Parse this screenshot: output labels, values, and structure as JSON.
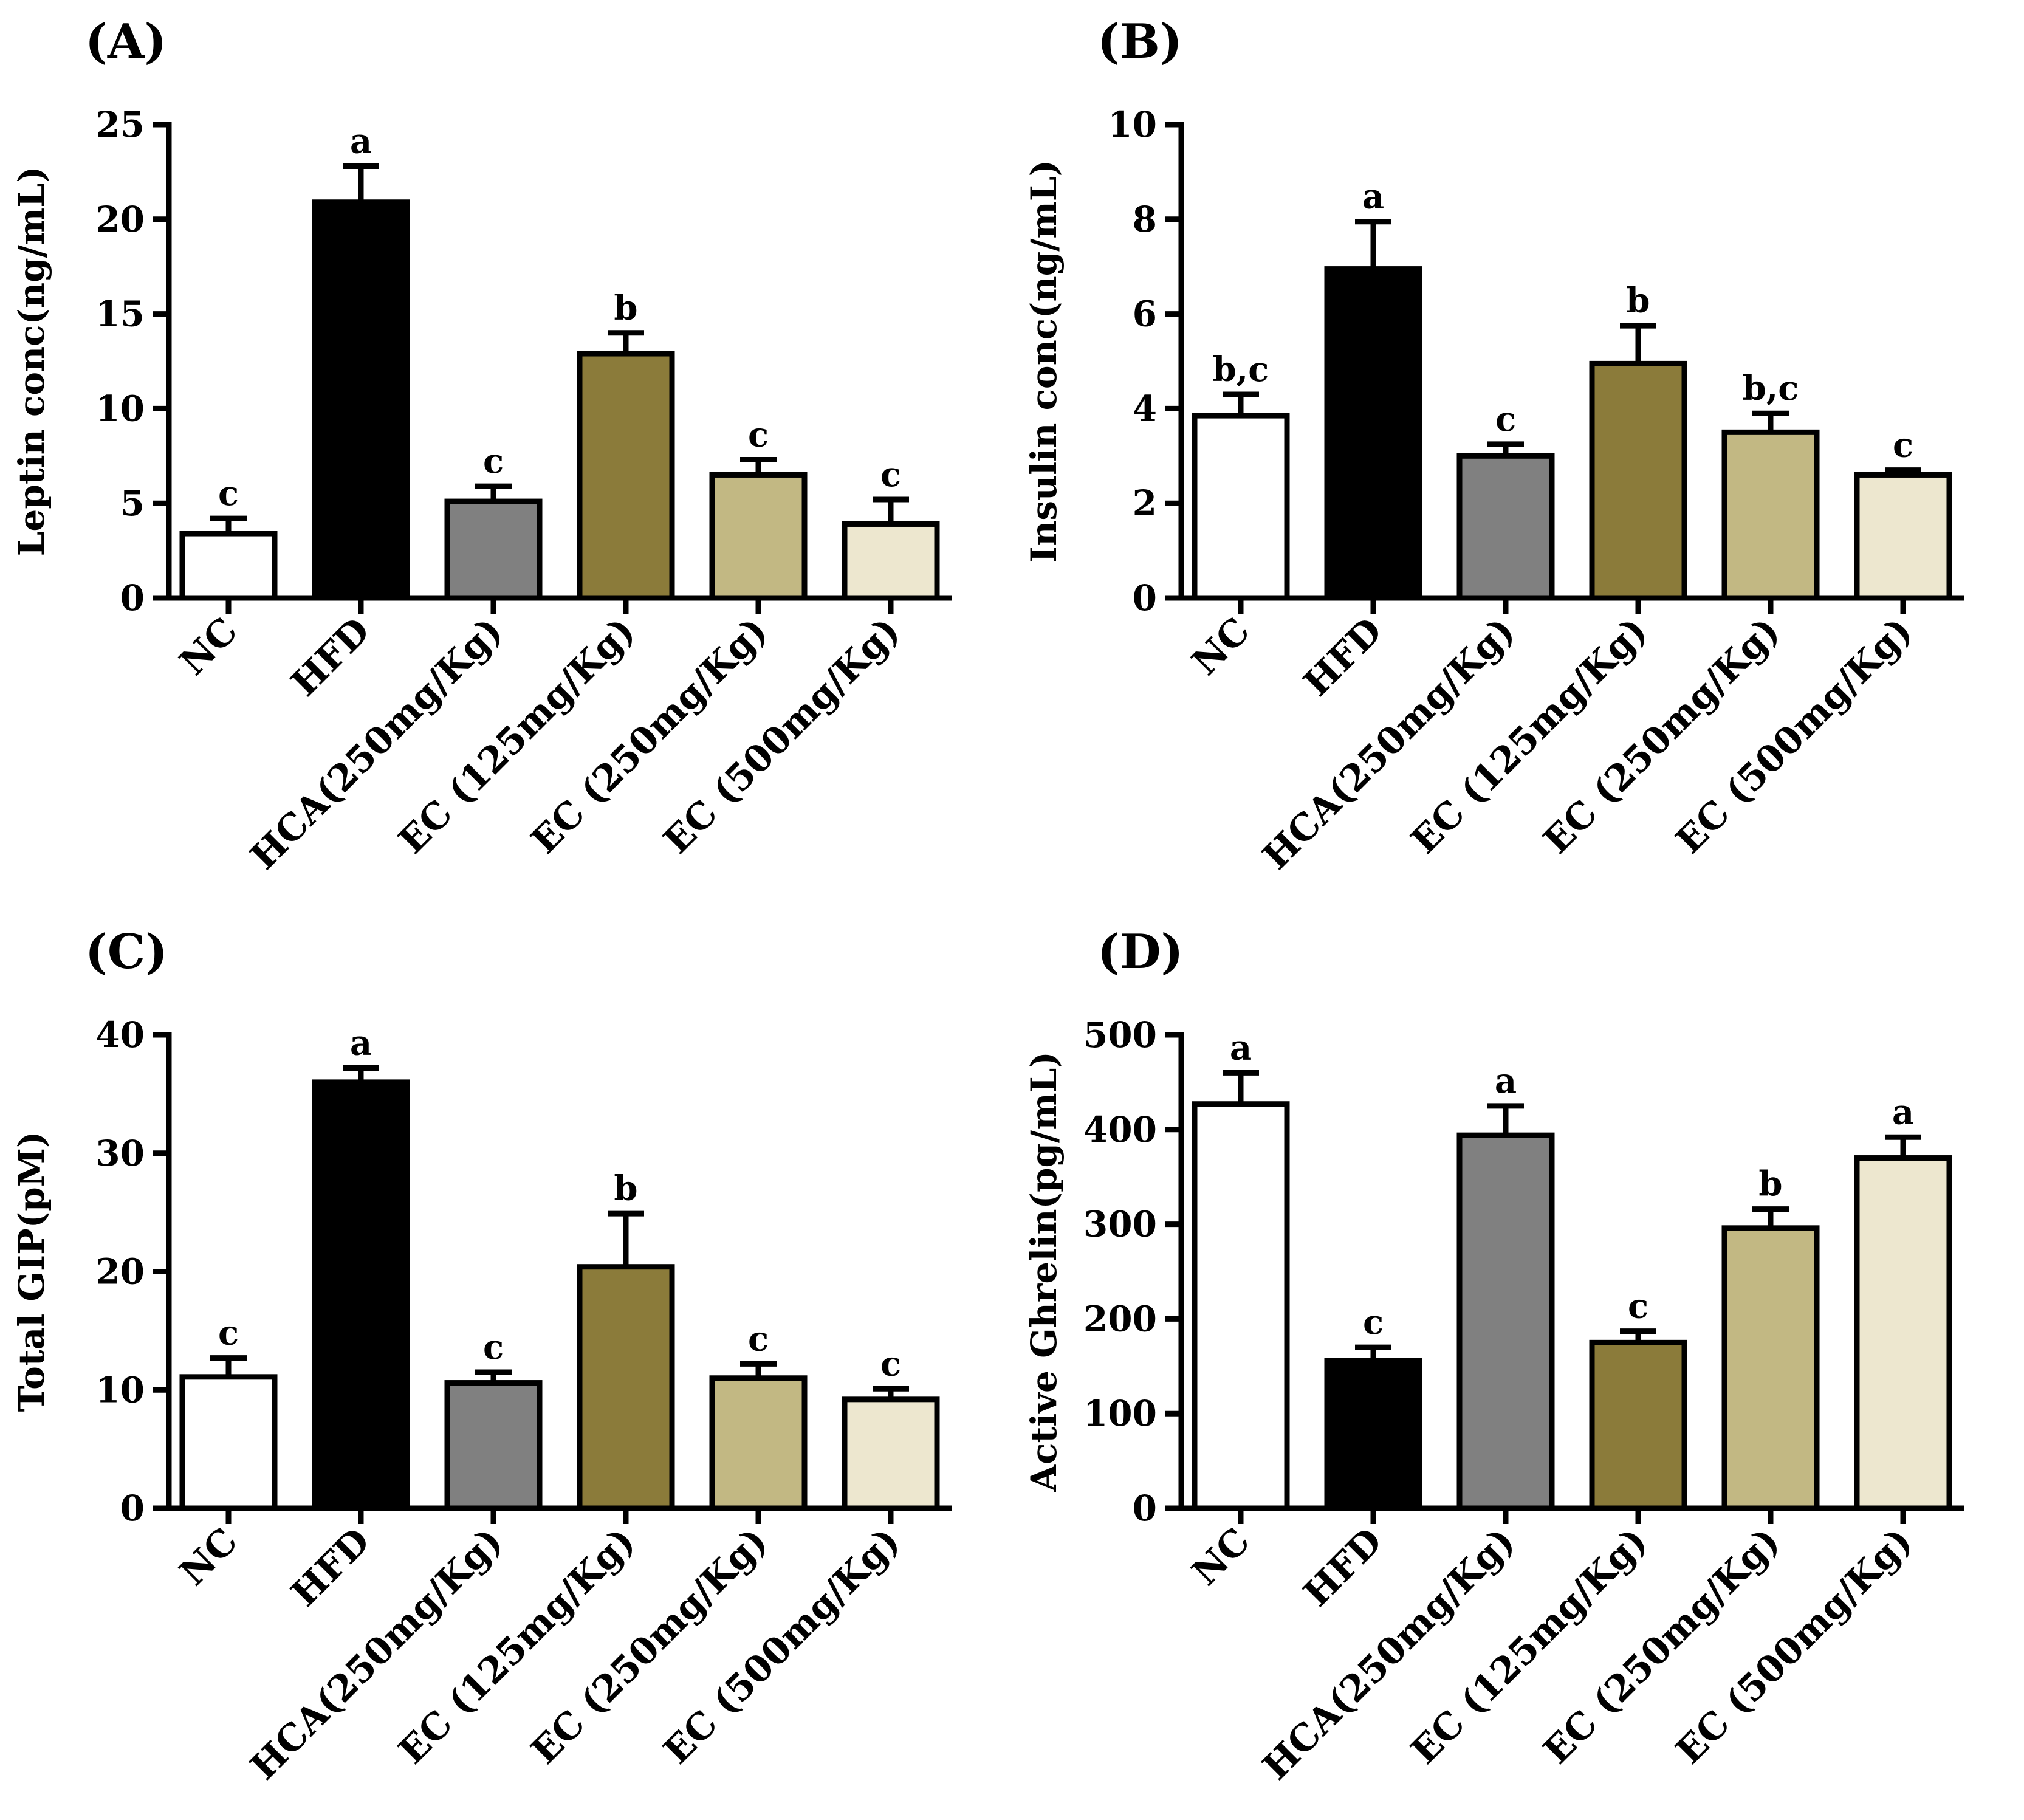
{
  "chart_data": [
    {
      "panel": "(A)",
      "type": "bar",
      "ylabel": "Leptin conc(ng/mL)",
      "ylim": [
        0,
        25
      ],
      "yticks": [
        0,
        5,
        10,
        15,
        20,
        25
      ],
      "categories": [
        "NC",
        "HFD",
        "HCA(250mg/Kg)",
        "EC (125mg/Kg)",
        "EC (250mg/Kg)",
        "EC (500mg/Kg)"
      ],
      "values": [
        3.4,
        20.9,
        5.1,
        12.9,
        6.5,
        3.9
      ],
      "errors": [
        0.8,
        1.9,
        0.8,
        1.1,
        0.8,
        1.3
      ],
      "letters": [
        "c",
        "a",
        "c",
        "b",
        "c",
        "c"
      ]
    },
    {
      "panel": "(B)",
      "type": "bar",
      "ylabel": "Insulin conc(ng/mL)",
      "ylim": [
        0,
        10
      ],
      "yticks": [
        0,
        2,
        4,
        6,
        8,
        10
      ],
      "categories": [
        "NC",
        "HFD",
        "HCA(250mg/Kg)",
        "EC (125mg/Kg)",
        "EC (250mg/Kg)",
        "EC (500mg/Kg)"
      ],
      "values": [
        3.85,
        6.95,
        3.0,
        4.95,
        3.5,
        2.6
      ],
      "errors": [
        0.45,
        1.0,
        0.25,
        0.8,
        0.4,
        0.1
      ],
      "letters": [
        "b,c",
        "a",
        "c",
        "b",
        "b,c",
        "c"
      ]
    },
    {
      "panel": "(C)",
      "type": "bar",
      "ylabel": "Total GIP(pM)",
      "ylim": [
        0,
        40
      ],
      "yticks": [
        0,
        10,
        20,
        30,
        40
      ],
      "categories": [
        "NC",
        "HFD",
        "HCA(250mg/Kg)",
        "EC (125mg/Kg)",
        "EC (250mg/Kg)",
        "EC (500mg/Kg)"
      ],
      "values": [
        11.1,
        36.0,
        10.6,
        20.4,
        11.0,
        9.2
      ],
      "errors": [
        1.6,
        1.2,
        0.9,
        4.5,
        1.2,
        0.9
      ],
      "letters": [
        "c",
        "a",
        "c",
        "b",
        "c",
        "c"
      ]
    },
    {
      "panel": "(D)",
      "type": "bar",
      "ylabel": "Active Ghrelin(pg/mL)",
      "ylim": [
        0,
        500
      ],
      "yticks": [
        0,
        100,
        200,
        300,
        400,
        500
      ],
      "categories": [
        "NC",
        "HFD",
        "HCA(250mg/Kg)",
        "EC (125mg/Kg)",
        "EC (250mg/Kg)",
        "EC (500mg/Kg)"
      ],
      "values": [
        427,
        156,
        394,
        175,
        296,
        370
      ],
      "errors": [
        33,
        14,
        31,
        12,
        20,
        22
      ],
      "letters": [
        "a",
        "c",
        "a",
        "c",
        "b",
        "a"
      ]
    }
  ],
  "colors": {
    "bar_fills": [
      "#ffffff",
      "#000000",
      "#808080",
      "#8b7b3a",
      "#c2b883",
      "#ede7cf"
    ],
    "stroke": "#000000"
  }
}
